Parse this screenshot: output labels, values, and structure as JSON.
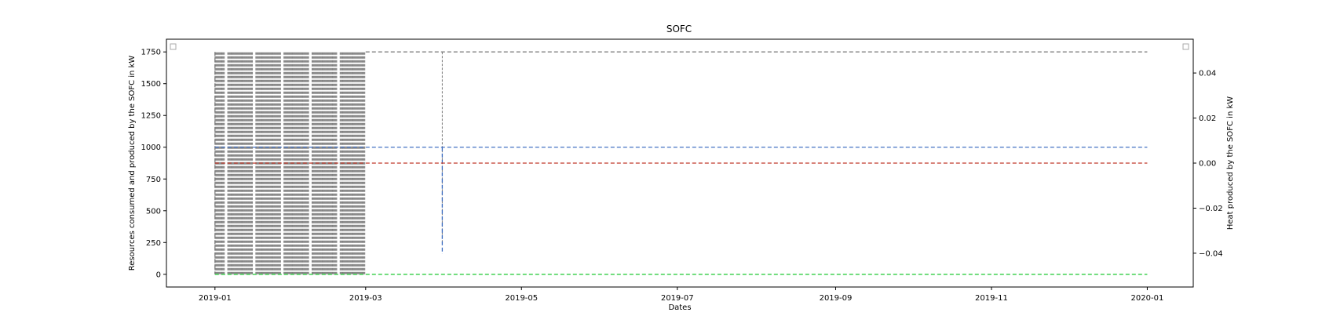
{
  "chart_data": {
    "type": "line",
    "title": "SOFC",
    "xlabel": "Dates",
    "ylabel_left": "Resources consumed and produced by the SOFC in kW",
    "ylabel_right": "Heat produced by the SOFC in kW",
    "xlim": [
      "2018-12-13",
      "2020-01-19"
    ],
    "ylim_left": [
      -100,
      1850
    ],
    "ylim_right": [
      -0.055,
      0.055
    ],
    "x_ticks": [
      "2019-01-01",
      "2019-03-01",
      "2019-05-01",
      "2019-07-01",
      "2019-09-01",
      "2019-11-01",
      "2020-01-01"
    ],
    "x_tick_labels": [
      "2019-01",
      "2019-03",
      "2019-05",
      "2019-07",
      "2019-09",
      "2019-11",
      "2020-01"
    ],
    "y_left_ticks": [
      0,
      250,
      500,
      750,
      1000,
      1250,
      1500,
      1750
    ],
    "y_left_tick_labels": [
      "0",
      "250",
      "500",
      "750",
      "1000",
      "1250",
      "1500",
      "1750"
    ],
    "y_right_ticks": [
      -0.04,
      -0.02,
      0.0,
      0.02,
      0.04
    ],
    "y_right_tick_labels": [
      "−0.04",
      "−0.02",
      "0.00",
      "0.02",
      "0.04"
    ],
    "grid": false,
    "legend_left": "top-left",
    "legend_right": "top-right",
    "series": [
      {
        "color": "#808080",
        "style": "dashed",
        "axis": "left",
        "x_range": [
          "2019-01-01",
          "2020-01-01"
        ],
        "baseline": 1750,
        "oscillation_low": 0,
        "oscillation_high": 1750,
        "oscillation_windows": [
          [
            "2019-01-01",
            "2019-03-01"
          ],
          [
            "2019-03-31",
            "2019-03-31"
          ]
        ]
      },
      {
        "color": "#4472c4",
        "style": "dashed",
        "axis": "left",
        "x_range": [
          "2019-01-01",
          "2020-01-01"
        ],
        "baseline": 1000,
        "spike": {
          "x": "2019-03-31",
          "value": 160
        }
      },
      {
        "color": "#c0392b",
        "style": "dashed",
        "axis": "right",
        "x_range": [
          "2019-01-01",
          "2020-01-01"
        ],
        "baseline": 0.0
      },
      {
        "color": "#2ecc40",
        "style": "dashed",
        "axis": "left",
        "x_range": [
          "2019-01-01",
          "2020-01-01"
        ],
        "baseline": 0
      }
    ]
  }
}
